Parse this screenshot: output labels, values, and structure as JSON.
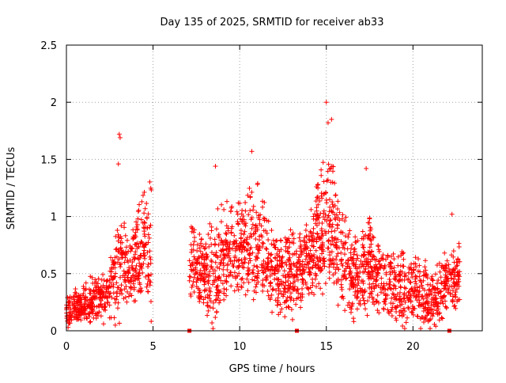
{
  "chart_data": {
    "type": "scatter",
    "title": "Day 135 of 2025, SRMTID for receiver ab33",
    "xlabel": "GPS time / hours",
    "ylabel": "SRMTID / TECUs",
    "xlim": [
      0,
      24
    ],
    "ylim": [
      0,
      2.5
    ],
    "xticks": [
      0,
      5,
      10,
      15,
      20
    ],
    "xtick_labels": [
      "0",
      "5",
      "10",
      "15",
      "20"
    ],
    "yticks": [
      0,
      0.5,
      1,
      1.5,
      2,
      2.5
    ],
    "ytick_labels": [
      "0",
      "0.5",
      "1",
      "1.5",
      "2",
      "2.5"
    ],
    "grid": true,
    "marker": "+",
    "color": "#ff0000",
    "zero_markers_x": [
      7.1,
      13.3,
      22.1
    ],
    "series": [
      {
        "name": "SRMTID",
        "note": "Dense scatter (approx. 2000 points); sampled trend envelope per segment: [x_hours, typical_center, spread_low, spread_high]",
        "segments": [
          {
            "x_start": 0.0,
            "x_end": 4.9,
            "profile": [
              [
                0.0,
                0.15,
                0.05,
                0.3
              ],
              [
                0.5,
                0.2,
                0.08,
                0.35
              ],
              [
                1.0,
                0.22,
                0.1,
                0.4
              ],
              [
                1.5,
                0.25,
                0.12,
                0.5
              ],
              [
                2.0,
                0.28,
                0.12,
                0.45
              ],
              [
                2.5,
                0.35,
                0.1,
                0.6
              ],
              [
                3.0,
                0.5,
                0.2,
                1.0
              ],
              [
                3.5,
                0.55,
                0.3,
                0.95
              ],
              [
                4.0,
                0.6,
                0.3,
                1.0
              ],
              [
                4.5,
                0.7,
                0.4,
                1.3
              ],
              [
                4.9,
                0.65,
                0.3,
                1.45
              ]
            ]
          },
          {
            "x_start": 7.1,
            "x_end": 13.3,
            "profile": [
              [
                7.1,
                0.6,
                0.3,
                1.0
              ],
              [
                7.5,
                0.55,
                0.3,
                0.9
              ],
              [
                8.0,
                0.5,
                0.2,
                0.9
              ],
              [
                8.5,
                0.4,
                0.05,
                1.0
              ],
              [
                9.0,
                0.65,
                0.3,
                1.2
              ],
              [
                9.5,
                0.7,
                0.3,
                1.2
              ],
              [
                10.0,
                0.75,
                0.35,
                1.2
              ],
              [
                10.5,
                0.7,
                0.4,
                1.25
              ],
              [
                11.0,
                0.75,
                0.35,
                1.3
              ],
              [
                11.5,
                0.6,
                0.3,
                1.1
              ],
              [
                12.0,
                0.5,
                0.2,
                0.9
              ],
              [
                12.5,
                0.45,
                0.1,
                0.8
              ],
              [
                13.0,
                0.5,
                0.15,
                0.9
              ],
              [
                13.3,
                0.5,
                0.2,
                0.8
              ]
            ]
          },
          {
            "x_start": 13.3,
            "x_end": 22.7,
            "profile": [
              [
                13.3,
                0.45,
                0.2,
                0.8
              ],
              [
                14.0,
                0.6,
                0.3,
                1.0
              ],
              [
                14.5,
                0.8,
                0.4,
                1.3
              ],
              [
                15.0,
                0.9,
                0.4,
                1.6
              ],
              [
                15.5,
                0.85,
                0.4,
                1.5
              ],
              [
                16.0,
                0.6,
                0.3,
                1.1
              ],
              [
                16.5,
                0.45,
                0.15,
                0.8
              ],
              [
                17.0,
                0.5,
                0.2,
                0.9
              ],
              [
                17.5,
                0.6,
                0.25,
                1.1
              ],
              [
                18.0,
                0.5,
                0.2,
                0.85
              ],
              [
                18.5,
                0.4,
                0.15,
                0.75
              ],
              [
                19.0,
                0.35,
                0.1,
                0.7
              ],
              [
                19.5,
                0.35,
                0.1,
                0.7
              ],
              [
                20.0,
                0.35,
                0.1,
                0.7
              ],
              [
                20.5,
                0.3,
                0.05,
                0.6
              ],
              [
                21.0,
                0.25,
                0.08,
                0.55
              ],
              [
                21.5,
                0.3,
                0.08,
                0.6
              ],
              [
                22.0,
                0.4,
                0.15,
                0.7
              ],
              [
                22.7,
                0.5,
                0.2,
                0.8
              ]
            ]
          }
        ],
        "notable_points": [
          [
            3.05,
            1.72
          ],
          [
            3.1,
            1.69
          ],
          [
            3.0,
            1.46
          ],
          [
            15.0,
            2.0
          ],
          [
            15.1,
            1.82
          ],
          [
            15.3,
            1.85
          ],
          [
            10.7,
            1.57
          ],
          [
            8.6,
            1.44
          ],
          [
            17.3,
            1.42
          ],
          [
            22.25,
            1.02
          ]
        ]
      }
    ]
  }
}
